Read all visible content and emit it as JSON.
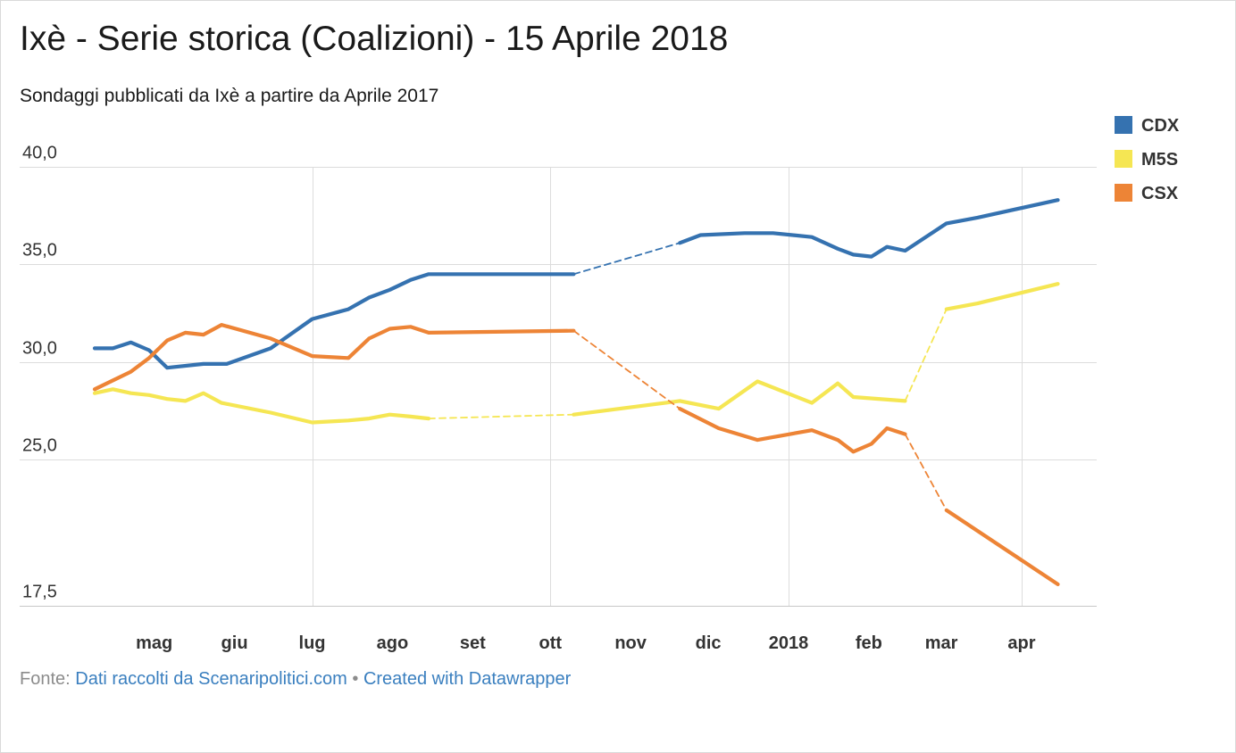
{
  "title": "Ixè - Serie storica (Coalizioni) - 15 Aprile 2018",
  "subtitle": "Sondaggi pubblicati da Ixè a partire da Aprile 2017",
  "footer": {
    "prefix": "Fonte: ",
    "source": "Dati raccolti da Scenaripolitici.com",
    "separator": " • ",
    "credit": "Created with Datawrapper"
  },
  "chart_data": {
    "type": "line",
    "title": "Ixè - Serie storica (Coalizioni) - 15 Aprile 2018",
    "subtitle": "Sondaggi pubblicati da Ixè a partire da Aprile 2017",
    "xlabel": "",
    "ylabel": "",
    "ylim": [
      17.5,
      40.0
    ],
    "xlim": [
      "2017-04-08",
      "2018-04-30"
    ],
    "y_ticks": [
      "40,0",
      "35,0",
      "30,0",
      "25,0",
      "17,5"
    ],
    "y_tick_values": [
      40.0,
      35.0,
      30.0,
      25.0,
      17.5
    ],
    "x_ticks": [
      {
        "label": "mag",
        "date": "2017-05-01"
      },
      {
        "label": "giu",
        "date": "2017-06-01"
      },
      {
        "label": "lug",
        "date": "2017-07-01"
      },
      {
        "label": "ago",
        "date": "2017-08-01"
      },
      {
        "label": "set",
        "date": "2017-09-01"
      },
      {
        "label": "ott",
        "date": "2017-10-01"
      },
      {
        "label": "nov",
        "date": "2017-11-01"
      },
      {
        "label": "dic",
        "date": "2017-12-01"
      },
      {
        "label": "2018",
        "date": "2018-01-01"
      },
      {
        "label": "feb",
        "date": "2018-02-01"
      },
      {
        "label": "mar",
        "date": "2018-03-01"
      },
      {
        "label": "apr",
        "date": "2018-04-01"
      }
    ],
    "gridlines": [
      "2017-07-01",
      "2017-10-01",
      "2018-01-01",
      "2018-04-01"
    ],
    "grid": true,
    "legend": "top-right",
    "series": [
      {
        "name": "CDX",
        "color": "#3572b0",
        "dashed_gaps": [
          [
            14,
            15
          ],
          [
            29,
            30
          ]
        ],
        "points": [
          [
            "2017-04-08",
            30.7
          ],
          [
            "2017-04-15",
            30.7
          ],
          [
            "2017-04-22",
            31.0
          ],
          [
            "2017-04-29",
            30.6
          ],
          [
            "2017-05-06",
            29.7
          ],
          [
            "2017-05-20",
            29.9
          ],
          [
            "2017-05-29",
            29.9
          ],
          [
            "2017-06-15",
            30.7
          ],
          [
            "2017-07-01",
            32.2
          ],
          [
            "2017-07-15",
            32.7
          ],
          [
            "2017-07-23",
            33.3
          ],
          [
            "2017-07-31",
            33.7
          ],
          [
            "2017-08-08",
            34.2
          ],
          [
            "2017-08-15",
            34.5
          ],
          [
            "2017-10-10",
            34.5
          ],
          [
            "2017-11-20",
            36.1
          ],
          [
            "2017-11-28",
            36.5
          ],
          [
            "2017-12-15",
            36.6
          ],
          [
            "2017-12-26",
            36.6
          ],
          [
            "2018-01-10",
            36.4
          ],
          [
            "2018-01-20",
            35.8
          ],
          [
            "2018-01-26",
            35.5
          ],
          [
            "2018-02-02",
            35.4
          ],
          [
            "2018-02-08",
            35.9
          ],
          [
            "2018-02-15",
            35.7
          ],
          [
            "2018-03-03",
            37.1
          ],
          [
            "2018-03-15",
            37.4
          ],
          [
            "2018-04-15",
            38.3
          ]
        ]
      },
      {
        "name": "M5S",
        "color": "#f5e653",
        "dashed_gaps": [
          [
            14,
            15
          ],
          [
            22,
            23
          ]
        ],
        "points": [
          [
            "2017-04-08",
            28.4
          ],
          [
            "2017-04-15",
            28.6
          ],
          [
            "2017-04-22",
            28.4
          ],
          [
            "2017-04-29",
            28.3
          ],
          [
            "2017-05-06",
            28.1
          ],
          [
            "2017-05-13",
            28.0
          ],
          [
            "2017-05-20",
            28.4
          ],
          [
            "2017-05-27",
            27.9
          ],
          [
            "2017-06-15",
            27.4
          ],
          [
            "2017-07-01",
            26.9
          ],
          [
            "2017-07-15",
            27.0
          ],
          [
            "2017-07-23",
            27.1
          ],
          [
            "2017-07-31",
            27.3
          ],
          [
            "2017-08-08",
            27.2
          ],
          [
            "2017-08-15",
            27.1
          ],
          [
            "2017-10-10",
            27.3
          ],
          [
            "2017-11-20",
            28.0
          ],
          [
            "2017-12-05",
            27.6
          ],
          [
            "2017-12-20",
            29.0
          ],
          [
            "2018-01-10",
            27.9
          ],
          [
            "2018-01-20",
            28.9
          ],
          [
            "2018-01-26",
            28.2
          ],
          [
            "2018-02-15",
            28.0
          ],
          [
            "2018-03-03",
            32.7
          ],
          [
            "2018-03-15",
            33.0
          ],
          [
            "2018-04-15",
            34.0
          ]
        ]
      },
      {
        "name": "CSX",
        "color": "#ed8436",
        "dashed_gaps": [
          [
            14,
            15
          ],
          [
            23,
            24
          ]
        ],
        "points": [
          [
            "2017-04-08",
            28.6
          ],
          [
            "2017-04-22",
            29.5
          ],
          [
            "2017-04-29",
            30.2
          ],
          [
            "2017-05-06",
            31.1
          ],
          [
            "2017-05-13",
            31.5
          ],
          [
            "2017-05-20",
            31.4
          ],
          [
            "2017-05-27",
            31.9
          ],
          [
            "2017-06-15",
            31.2
          ],
          [
            "2017-07-01",
            30.3
          ],
          [
            "2017-07-15",
            30.2
          ],
          [
            "2017-07-23",
            31.2
          ],
          [
            "2017-07-31",
            31.7
          ],
          [
            "2017-08-08",
            31.8
          ],
          [
            "2017-08-15",
            31.5
          ],
          [
            "2017-10-10",
            31.6
          ],
          [
            "2017-11-20",
            27.6
          ],
          [
            "2017-12-05",
            26.6
          ],
          [
            "2017-12-20",
            26.0
          ],
          [
            "2018-01-10",
            26.5
          ],
          [
            "2018-01-20",
            26.0
          ],
          [
            "2018-01-26",
            25.4
          ],
          [
            "2018-02-02",
            25.8
          ],
          [
            "2018-02-08",
            26.6
          ],
          [
            "2018-02-15",
            26.3
          ],
          [
            "2018-03-03",
            22.4
          ],
          [
            "2018-04-15",
            18.6
          ]
        ]
      }
    ]
  }
}
